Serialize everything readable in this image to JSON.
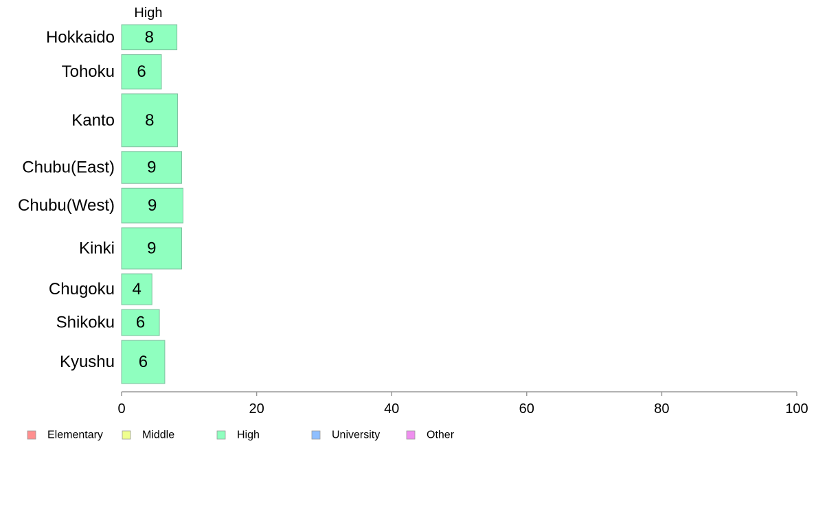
{
  "chart_data": {
    "type": "bar",
    "orientation": "horizontal",
    "column_header": "High",
    "categories": [
      "Hokkaido",
      "Tohoku",
      "Kanto",
      "Chubu(East)",
      "Chubu(West)",
      "Kinki",
      "Chugoku",
      "Shikoku",
      "Kyushu"
    ],
    "series": [
      {
        "name": "High",
        "values": [
          8,
          6,
          8,
          9,
          9,
          9,
          4,
          6,
          6
        ],
        "color": "#8fffbf"
      }
    ],
    "value_extent": [
      8.2,
      5.9,
      8.3,
      8.9,
      9.1,
      8.9,
      4.5,
      5.6,
      6.4
    ],
    "row_weight": [
      0.78,
      1.07,
      1.64,
      0.99,
      1.08,
      1.28,
      0.96,
      0.81,
      1.34
    ],
    "xlim": [
      0,
      100
    ],
    "xticks": [
      0,
      20,
      40,
      60,
      80,
      100
    ],
    "grid": false,
    "legend_position": "bottom",
    "legend": [
      {
        "label": "Elementary",
        "color": "#ff8f8f"
      },
      {
        "label": "Middle",
        "color": "#efff8f"
      },
      {
        "label": "High",
        "color": "#8fffbf"
      },
      {
        "label": "University",
        "color": "#8fbfff"
      },
      {
        "label": "Other",
        "color": "#ef8fef"
      }
    ],
    "bar_border_color": "#7fbf9f",
    "axis_color": "#999999"
  }
}
